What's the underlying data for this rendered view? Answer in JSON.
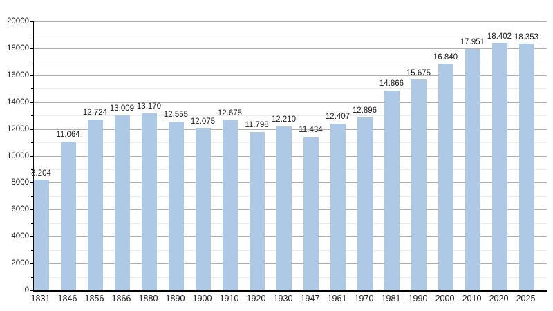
{
  "chart_data": {
    "type": "bar",
    "title": "",
    "xlabel": "",
    "ylabel": "",
    "categories": [
      "1831",
      "1846",
      "1856",
      "1866",
      "1880",
      "1890",
      "1900",
      "1910",
      "1920",
      "1930",
      "1947",
      "1961",
      "1970",
      "1981",
      "1990",
      "2000",
      "2010",
      "2020",
      "2025"
    ],
    "values": [
      8204,
      11064,
      12724,
      13009,
      13170,
      12555,
      12075,
      12675,
      11798,
      12210,
      11434,
      12407,
      12896,
      14866,
      15675,
      16840,
      17951,
      18402,
      18353
    ],
    "value_labels": [
      "8.204",
      "11.064",
      "12.724",
      "13.009",
      "13.170",
      "12.555",
      "12.075",
      "12.675",
      "11.798",
      "12.210",
      "11.434",
      "12.407",
      "12.896",
      "14.866",
      "15.675",
      "16.840",
      "17.951",
      "18.402",
      "18.353"
    ],
    "ylim": [
      0,
      20000
    ],
    "y_tick_labels": [
      "0",
      "2000",
      "4000",
      "6000",
      "8000",
      "10000",
      "12000",
      "14000",
      "16000",
      "18000",
      "20000"
    ],
    "grid": {
      "minor_step": 1000,
      "major_step": 2000,
      "visible": true
    },
    "legend": {
      "visible": false
    },
    "colors": {
      "bar": "#AEC9E5",
      "grid_major": "#b0b0b0",
      "grid_minor": "#ebebeb",
      "axis": "#000000",
      "text": "#1a1a1a"
    }
  }
}
